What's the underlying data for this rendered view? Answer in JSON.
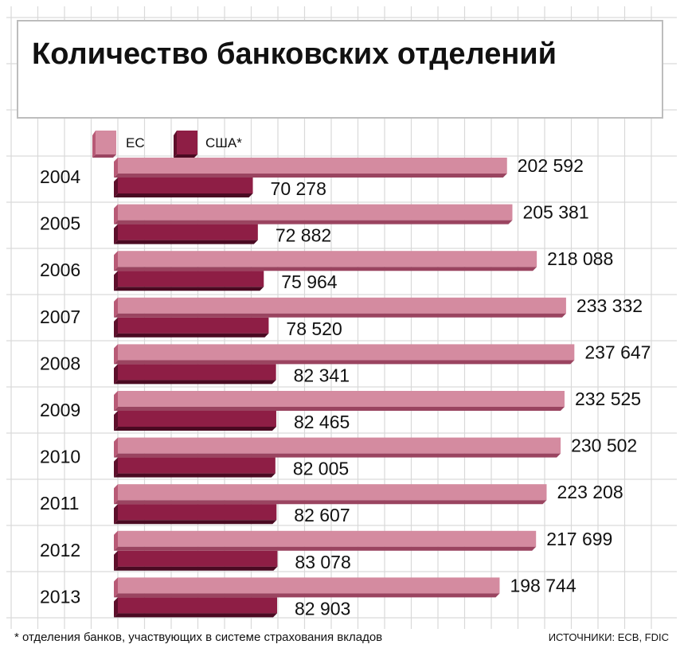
{
  "chart_data": {
    "type": "bar",
    "orientation": "horizontal",
    "title": "Количество банковских отделений",
    "categories": [
      "2004",
      "2005",
      "2006",
      "2007",
      "2008",
      "2009",
      "2010",
      "2011",
      "2012",
      "2013"
    ],
    "series": [
      {
        "name": "ЕС",
        "color": "#d48ba0",
        "values": [
          202592,
          205381,
          218088,
          233332,
          237647,
          232525,
          230502,
          223208,
          217699,
          198744
        ],
        "labels": [
          "202 592",
          "205 381",
          "218 088",
          "233 332",
          "237 647",
          "232 525",
          "230 502",
          "223 208",
          "217 699",
          "198 744"
        ]
      },
      {
        "name": "США*",
        "color": "#8e1e45",
        "values": [
          70278,
          72882,
          75964,
          78520,
          82341,
          82465,
          82005,
          82607,
          83078,
          82903
        ],
        "labels": [
          "70 278",
          "72 882",
          "75 964",
          "78 520",
          "82 341",
          "82 465",
          "82 005",
          "82 607",
          "83 078",
          "82 903"
        ]
      }
    ],
    "xlim": [
      0,
      240000
    ],
    "legend_position": "top-left",
    "grid": true,
    "footnote": "* отделения банков, участвующих в системе страхования вкладов",
    "source": "ИСТОЧНИКИ: ECB, FDIC"
  }
}
